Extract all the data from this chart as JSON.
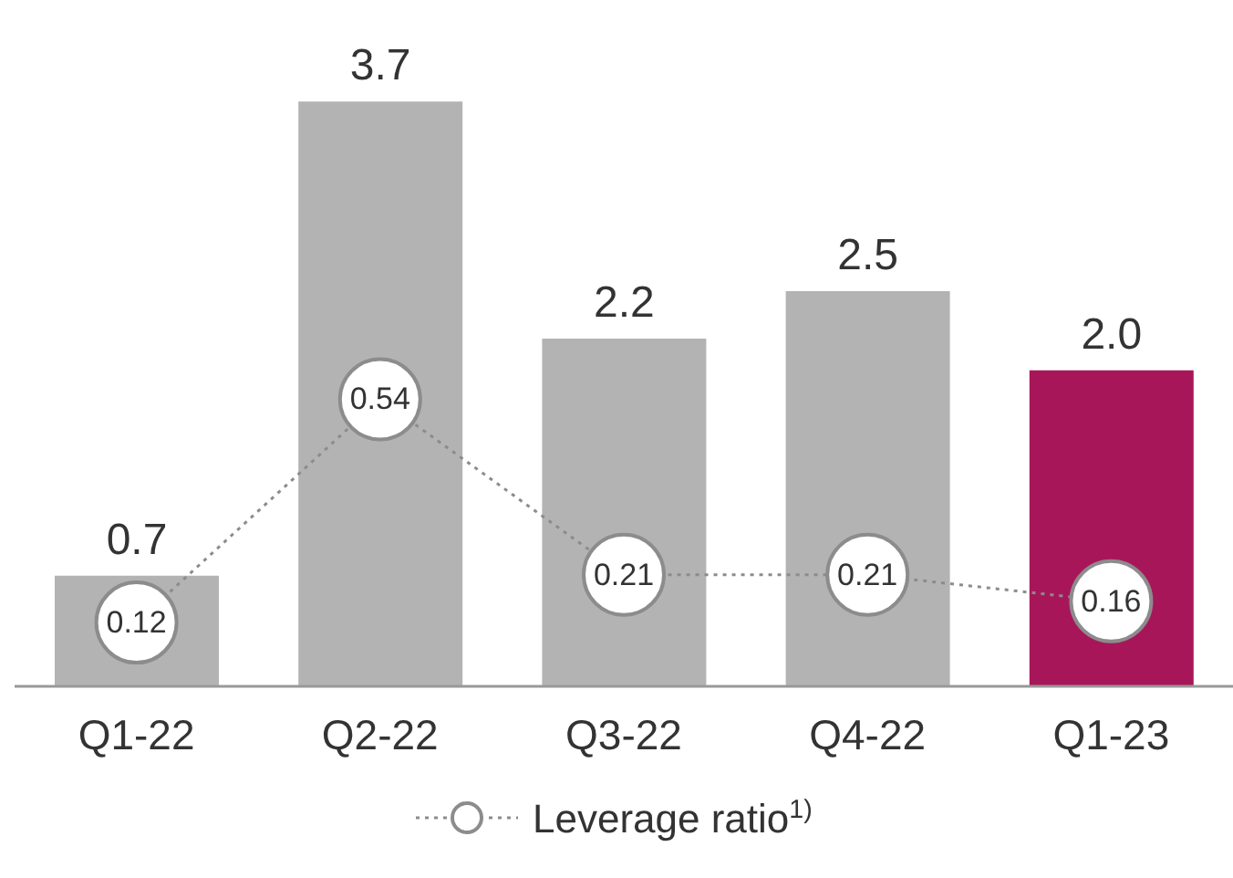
{
  "chart_data": {
    "type": "bar",
    "categories": [
      "Q1-22",
      "Q2-22",
      "Q3-22",
      "Q4-22",
      "Q1-23"
    ],
    "series": [
      {
        "colors": [
          "#b3b3b3",
          "#b3b3b3",
          "#b3b3b3",
          "#b3b3b3",
          "#a8165a"
        ],
        "values": [
          0.7,
          3.7,
          2.2,
          2.5,
          2.0
        ],
        "value_labels": [
          "0.7",
          "3.7",
          "2.2",
          "2.5",
          "2.0"
        ]
      },
      {
        "type": "line",
        "name": "Leverage ratio$^{1)}$",
        "color": "#8c8c8c",
        "axis": "y2",
        "values": [
          0.12,
          0.54,
          0.21,
          0.21,
          0.16
        ],
        "value_labels": [
          "0.12",
          "0.54",
          "0.21",
          "0.21",
          "0.16"
        ]
      }
    ],
    "tick_labels": "x",
    "legend": "bottom",
    "marker": "circle",
    "line_style": "dotted"
  }
}
